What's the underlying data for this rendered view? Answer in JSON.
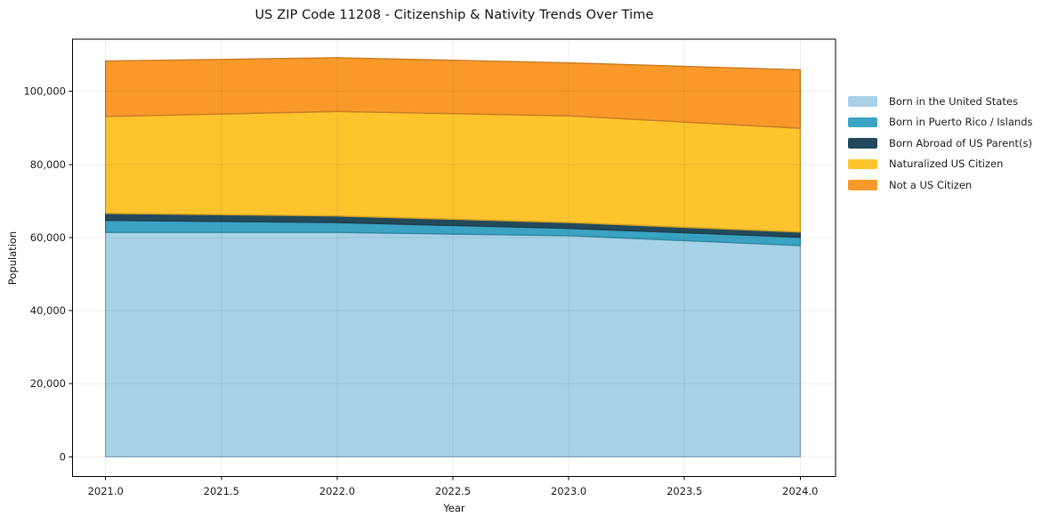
{
  "chart_data": {
    "type": "area",
    "stacked": true,
    "title": "US ZIP Code 11208 - Citizenship & Nativity Trends Over Time",
    "xlabel": "Year",
    "ylabel": "Population",
    "x": [
      2021,
      2022,
      2023,
      2024
    ],
    "series": [
      {
        "name": "Born in the United States",
        "color": "#a7d2e7",
        "values": [
          61400,
          61400,
          60500,
          57800
        ]
      },
      {
        "name": "Born in Puerto Rico / Islands",
        "color": "#3ba3c4",
        "values": [
          3300,
          2700,
          2000,
          2300
        ]
      },
      {
        "name": "Born Abroad of US Parent(s)",
        "color": "#224a5c",
        "values": [
          1900,
          1800,
          1600,
          1400
        ]
      },
      {
        "name": "Naturalized US Citizen",
        "color": "#fdc42e",
        "values": [
          26500,
          28600,
          29200,
          28400
        ]
      },
      {
        "name": "Not a US Citizen",
        "color": "#f8992a",
        "values": [
          15200,
          14700,
          14500,
          16000
        ]
      }
    ],
    "stack_totals": [
      108300,
      109200,
      107800,
      105900
    ],
    "xticks": {
      "values": [
        2021.0,
        2021.5,
        2022.0,
        2022.5,
        2023.0,
        2023.5,
        2024.0
      ],
      "labels": [
        "2021.0",
        "2021.5",
        "2022.0",
        "2022.5",
        "2023.0",
        "2023.5",
        "2024.0"
      ]
    },
    "yticks": {
      "values": [
        0,
        20000,
        40000,
        60000,
        80000,
        100000
      ],
      "labels": [
        "0",
        "20,000",
        "40,000",
        "60,000",
        "80,000",
        "100,000"
      ]
    },
    "xlim": [
      2020.85,
      2024.15
    ],
    "ylim": [
      -7300,
      114800
    ],
    "grid": true,
    "legend_position": "outside-right",
    "colors": {
      "background": "#ffffff",
      "grid": "rgba(0,0,0,0.07)",
      "spine": "#000000",
      "text": "#1a1a1a"
    }
  }
}
